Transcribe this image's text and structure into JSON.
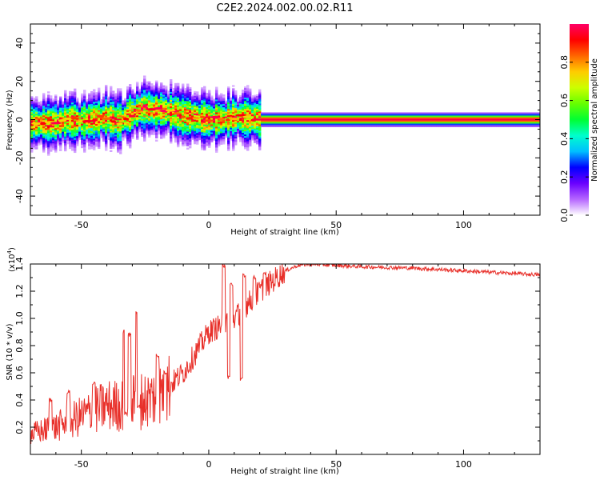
{
  "title": "C2E2.2024.002.00.02.R11",
  "chart_data": [
    {
      "type": "heatmap",
      "name": "spectrogram",
      "xlabel": "Height of straight line (km)",
      "ylabel": "Frequency (Hz)",
      "xlim": [
        -70,
        130
      ],
      "ylim": [
        -50,
        50
      ],
      "xticks": [
        -50,
        0,
        50,
        100
      ],
      "xtick_labels": [
        "-50",
        "0",
        "50",
        "100"
      ],
      "yticks": [
        -40,
        -20,
        0,
        20,
        40
      ],
      "ytick_labels": [
        "-40",
        "-20",
        "0",
        "20",
        "40"
      ],
      "ridge": {
        "x": [
          -70,
          -65,
          -60,
          -55,
          -50,
          -45,
          -40,
          -35,
          -30,
          -27,
          -25,
          -22,
          -20,
          -15,
          -10,
          -5,
          0,
          5,
          10,
          15,
          20,
          30,
          60,
          100,
          130
        ],
        "y": [
          -2,
          -2,
          -2,
          0,
          -1,
          0,
          1,
          -1,
          3,
          5,
          6,
          5,
          5,
          4,
          2,
          1,
          0,
          0,
          1,
          1,
          0,
          0,
          0,
          0,
          0
        ]
      }
    },
    {
      "type": "line",
      "name": "snr",
      "xlabel": "Height of straight line (km)",
      "ylabel": "SNR (10 * v/v)",
      "ylabel_multiplier": "(x10",
      "ylabel_exponent": "4",
      "ylabel_close": ")",
      "xlim": [
        -70,
        130
      ],
      "ylim": [
        0,
        14000
      ],
      "xticks": [
        -50,
        0,
        50,
        100
      ],
      "xtick_labels": [
        "-50",
        "0",
        "50",
        "100"
      ],
      "yticks": [
        2000,
        4000,
        6000,
        8000,
        10000,
        12000,
        14000
      ],
      "ytick_labels": [
        "0.2",
        "0.4",
        "0.6",
        "0.8",
        "1.0",
        "1.2",
        "1.4"
      ],
      "color": "#e8302a",
      "trend": {
        "x": [
          -70,
          -60,
          -50,
          -40,
          -35,
          -30,
          -25,
          -20,
          -10,
          -5,
          0,
          5,
          10,
          20,
          30,
          35,
          40,
          50,
          60,
          80,
          100,
          120,
          130
        ],
        "y": [
          1500,
          2000,
          2800,
          3600,
          3600,
          3800,
          4000,
          4300,
          6000,
          7500,
          9000,
          9500,
          10000,
          12000,
          13500,
          13900,
          14000,
          13900,
          13800,
          13700,
          13500,
          13300,
          13200
        ]
      },
      "spikes": [
        {
          "x": -33,
          "y": 9000
        },
        {
          "x": -32.5,
          "y": 3000
        },
        {
          "x": -31,
          "y": 8800
        },
        {
          "x": -28,
          "y": 10500
        },
        {
          "x": -27.5,
          "y": 3500
        },
        {
          "x": -45,
          "y": 5200
        },
        {
          "x": -55,
          "y": 4600
        },
        {
          "x": -62,
          "y": 4000
        },
        {
          "x": -20,
          "y": 7300
        },
        {
          "x": -17,
          "y": 6000
        },
        {
          "x": 6,
          "y": 13900
        },
        {
          "x": 8,
          "y": 5700
        },
        {
          "x": 9,
          "y": 12500
        },
        {
          "x": 13,
          "y": 5500
        },
        {
          "x": 14,
          "y": 13200
        },
        {
          "x": 18,
          "y": 13000
        },
        {
          "x": 22,
          "y": 13300
        }
      ]
    }
  ],
  "colorbar": {
    "label": "Normalized spectral amplitude",
    "ticks": [
      0.0,
      0.2,
      0.4,
      0.6,
      0.8
    ],
    "tick_labels": [
      "0.0",
      "0.2",
      "0.4",
      "0.6",
      "0.8"
    ],
    "range": [
      0,
      1
    ],
    "colors": [
      "#ffffff",
      "#b566ff",
      "#6a00ff",
      "#0000ff",
      "#00bfff",
      "#00ffcc",
      "#00ff33",
      "#66ff00",
      "#ccff00",
      "#ffcc00",
      "#ff6600",
      "#ff0000",
      "#ff0066"
    ]
  }
}
